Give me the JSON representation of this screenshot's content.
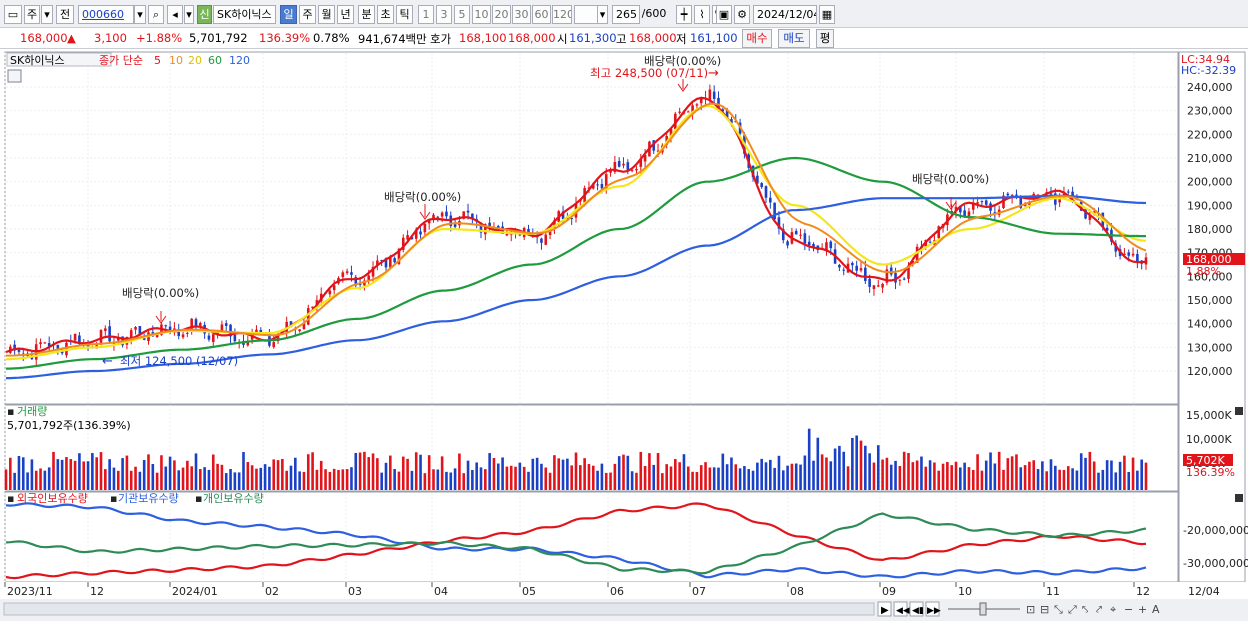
{
  "toolbar": {
    "period_mode": "주",
    "prev_label": "전",
    "code_value": "000660",
    "stock_name": "SK하이닉스",
    "badge_new": "신",
    "period_buttons": [
      "일",
      "주",
      "월",
      "년",
      "분",
      "초",
      "틱"
    ],
    "active_period": "일",
    "interval_buttons": [
      "1",
      "3",
      "5",
      "10",
      "20",
      "30",
      "60",
      "120"
    ],
    "count_value": "265",
    "count_total": "/600",
    "date_value": "2024/12/04"
  },
  "quote": {
    "price": "168,000",
    "change": "3,100",
    "change_pct": "+1.88%",
    "volume": "5,701,792",
    "volume_ratio": "136.39%",
    "turnover": "0.78%",
    "amount": "941,674백만",
    "bid_label": "호가",
    "bid_value": "168,100",
    "ask_value": "168,000",
    "open_label": "시",
    "open_value": "161,300",
    "high_label": "고",
    "high_value": "168,000",
    "low_label": "저",
    "low_value": "161,100",
    "buy_button": "매수",
    "sell_button": "매도",
    "eval_button": "평"
  },
  "price_panel": {
    "name": "SK하이닉스",
    "legend_label": "종가 단순",
    "ma_labels": [
      "5",
      "10",
      "20",
      "60",
      "120"
    ],
    "ma_colors": [
      "#e1141b",
      "#f08c1e",
      "#f5e61a",
      "#1e9b3c",
      "#2d5fe0"
    ],
    "lc_label": "LC:34.94",
    "hc_label": "HC:-32.39",
    "high_annotation": "최고 248,500 (07/11)",
    "low_annotation": "최저 124,500 (12/07)",
    "dividend_label": "배당락(0.00%)",
    "current_price_tag": "168,000",
    "current_pct_tag": "1.88%",
    "y_ticks": [
      "240,000",
      "230,000",
      "220,000",
      "210,000",
      "200,000",
      "190,000",
      "180,000",
      "170,000",
      "160,000",
      "150,000",
      "140,000",
      "130,000",
      "120,000"
    ]
  },
  "volume_panel": {
    "title": "거래량",
    "value_label": "5,701,792주(136.39%)",
    "y_ticks": [
      "15,000K",
      "10,000K",
      "5,000K"
    ],
    "tag_value": "5,702K",
    "tag_pct": "136.39%"
  },
  "holdings_panel": {
    "labels": [
      "외국인보유수량",
      "기관보유수량",
      "개인보유수량"
    ],
    "colors": [
      "#e1141b",
      "#2d5fe0",
      "#2e8b57"
    ],
    "y_ticks": [
      "-20,000,000",
      "-30,000,000"
    ]
  },
  "x_axis_labels": [
    "2023/11",
    "12",
    "2024/01",
    "02",
    "03",
    "04",
    "05",
    "06",
    "07",
    "08",
    "09",
    "10",
    "11",
    "12"
  ],
  "x_axis_end_label": "12/04",
  "chart_data": {
    "type": "line",
    "title": "SK하이닉스",
    "x": [
      "2023/11",
      "12",
      "2024/01",
      "02",
      "03",
      "04",
      "05",
      "06",
      "07",
      "08",
      "09",
      "10",
      "11",
      "12"
    ],
    "series": [
      {
        "name": "5",
        "values": [
          128000,
          133000,
          138000,
          134000,
          160000,
          185000,
          178000,
          205000,
          235000,
          175000,
          158000,
          190000,
          195000,
          165000
        ]
      },
      {
        "name": "20",
        "values": [
          125000,
          130000,
          137000,
          136000,
          155000,
          180000,
          178000,
          198000,
          232000,
          190000,
          165000,
          180000,
          193000,
          175000
        ]
      },
      {
        "name": "60",
        "values": [
          121000,
          125000,
          129000,
          133000,
          142000,
          154000,
          165000,
          180000,
          200000,
          210000,
          200000,
          185000,
          178000,
          177000
        ]
      },
      {
        "name": "120",
        "values": [
          117000,
          120000,
          123000,
          127000,
          133000,
          141000,
          150000,
          160000,
          173000,
          188000,
          193000,
          193000,
          194000,
          191000
        ]
      }
    ],
    "ylim": [
      110000,
      245000
    ],
    "annotations": [
      "최고 248,500 (07/11)",
      "최저 124,500 (12/07)"
    ],
    "last_close": 168000
  }
}
